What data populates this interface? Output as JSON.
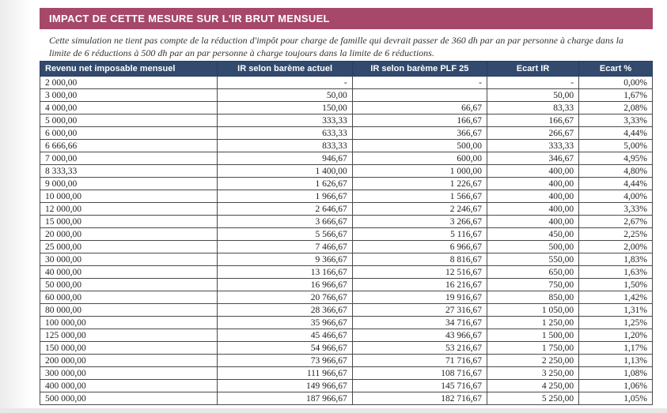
{
  "colors": {
    "banner_bg": "#a6486a",
    "banner_fg": "#ffffff",
    "header_bg": "#324a6e",
    "header_fg": "#ffffff",
    "row_border": "#4a4a4a",
    "page_bg": "#ffffff",
    "text": "#222222"
  },
  "banner": {
    "title": "IMPACT DE CETTE MESURE SUR L'IR BRUT MENSUEL"
  },
  "intro": {
    "text": "Cette simulation ne tient pas compte de la réduction d'impôt pour charge de famille qui devrait passer de 360 dh par an par personne à charge dans la limite de 6 réductions à 500 dh par an par personne à charge toujours dans la limite de 6 réductions."
  },
  "table": {
    "columns": [
      {
        "key": "rev",
        "label": "Revenu net imposable mensuel",
        "align": "left"
      },
      {
        "key": "act",
        "label": "IR selon barème actuel",
        "align": "right"
      },
      {
        "key": "plf",
        "label": "IR selon barème PLF 25",
        "align": "right"
      },
      {
        "key": "ecir",
        "label": "Ecart IR",
        "align": "right"
      },
      {
        "key": "ecpct",
        "label": "Ecart %",
        "align": "right"
      }
    ],
    "col_widths_pct": [
      29,
      22,
      22,
      15,
      12
    ],
    "rows": [
      [
        "2 000,00",
        "-",
        "-",
        "-",
        "0,00%"
      ],
      [
        "3 000,00",
        "50,00",
        "",
        "50,00",
        "1,67%"
      ],
      [
        "4 000,00",
        "150,00",
        "66,67",
        "83,33",
        "2,08%"
      ],
      [
        "5 000,00",
        "333,33",
        "166,67",
        "166,67",
        "3,33%"
      ],
      [
        "6 000,00",
        "633,33",
        "366,67",
        "266,67",
        "4,44%"
      ],
      [
        "6 666,66",
        "833,33",
        "500,00",
        "333,33",
        "5,00%"
      ],
      [
        "7 000,00",
        "946,67",
        "600,00",
        "346,67",
        "4,95%"
      ],
      [
        "8 333,33",
        "1 400,00",
        "1 000,00",
        "400,00",
        "4,80%"
      ],
      [
        "9 000,00",
        "1 626,67",
        "1 226,67",
        "400,00",
        "4,44%"
      ],
      [
        "10 000,00",
        "1 966,67",
        "1 566,67",
        "400,00",
        "4,00%"
      ],
      [
        "12 000,00",
        "2 646,67",
        "2 246,67",
        "400,00",
        "3,33%"
      ],
      [
        "15 000,00",
        "3 666,67",
        "3 266,67",
        "400,00",
        "2,67%"
      ],
      [
        "20 000,00",
        "5 566,67",
        "5 116,67",
        "450,00",
        "2,25%"
      ],
      [
        "25 000,00",
        "7 466,67",
        "6 966,67",
        "500,00",
        "2,00%"
      ],
      [
        "30 000,00",
        "9 366,67",
        "8 816,67",
        "550,00",
        "1,83%"
      ],
      [
        "40 000,00",
        "13 166,67",
        "12 516,67",
        "650,00",
        "1,63%"
      ],
      [
        "50 000,00",
        "16 966,67",
        "16 216,67",
        "750,00",
        "1,50%"
      ],
      [
        "60 000,00",
        "20 766,67",
        "19 916,67",
        "850,00",
        "1,42%"
      ],
      [
        "80 000,00",
        "28 366,67",
        "27 316,67",
        "1 050,00",
        "1,31%"
      ],
      [
        "100 000,00",
        "35 966,67",
        "34 716,67",
        "1 250,00",
        "1,25%"
      ],
      [
        "125 000,00",
        "45 466,67",
        "43 966,67",
        "1 500,00",
        "1,20%"
      ],
      [
        "150 000,00",
        "54 966,67",
        "53 216,67",
        "1 750,00",
        "1,17%"
      ],
      [
        "200 000,00",
        "73 966,67",
        "71 716,67",
        "2 250,00",
        "1,13%"
      ],
      [
        "300 000,00",
        "111 966,67",
        "108 716,67",
        "3 250,00",
        "1,08%"
      ],
      [
        "400 000,00",
        "149 966,67",
        "145 716,67",
        "4 250,00",
        "1,06%"
      ],
      [
        "500 000,00",
        "187 966,67",
        "182 716,67",
        "5 250,00",
        "1,05%"
      ]
    ]
  }
}
